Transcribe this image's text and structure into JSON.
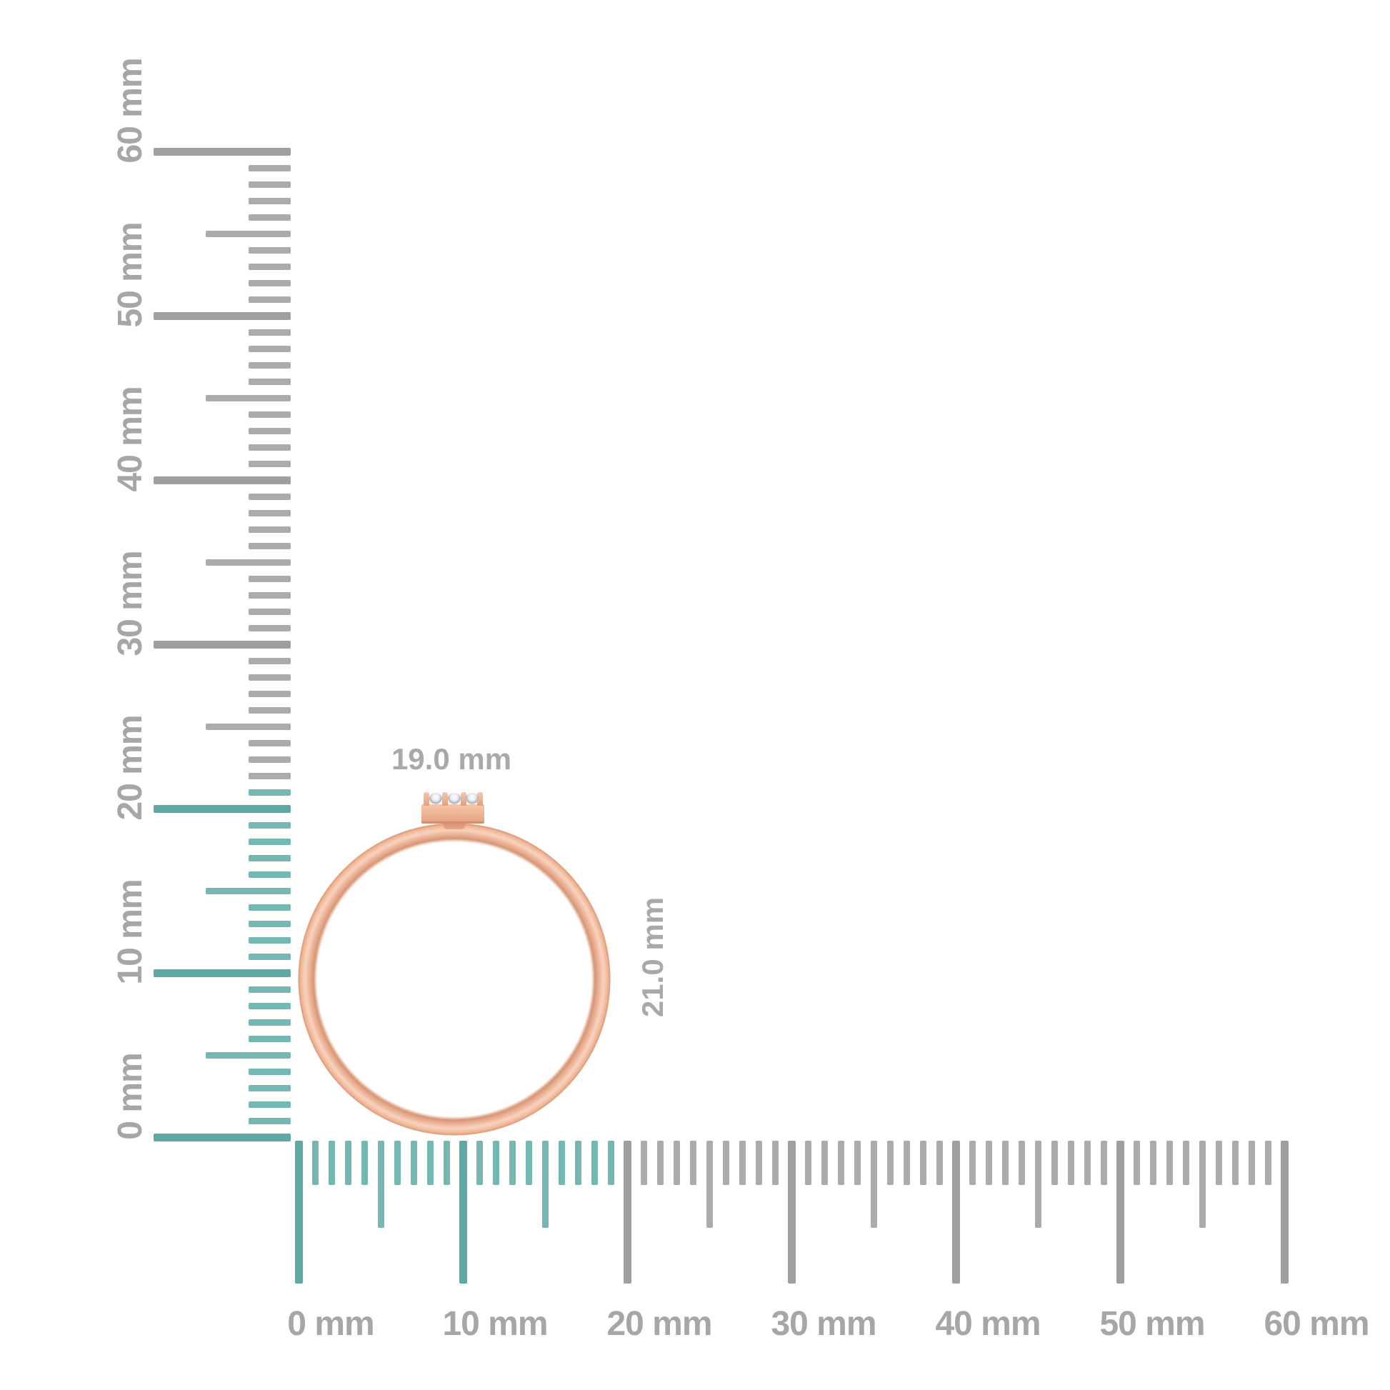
{
  "figure": {
    "object": "rose-gold ring with three-stone bar setting, shown against mm rulers",
    "width_label": "19.0 mm",
    "height_label": "21.0 mm",
    "stone_count": 3
  },
  "horizontal_ruler": {
    "unit": "mm",
    "min_mm": 0,
    "max_mm": 60,
    "minor_step_mm": 1,
    "medium_step_mm": 5,
    "major_step_mm": 10,
    "highlight_max_mm": 19,
    "labels": [
      "0 mm",
      "10 mm",
      "20 mm",
      "30 mm",
      "40 mm",
      "50 mm",
      "60 mm"
    ]
  },
  "vertical_ruler": {
    "unit": "mm",
    "min_mm": 0,
    "max_mm": 60,
    "minor_step_mm": 1,
    "medium_step_mm": 5,
    "major_step_mm": 10,
    "highlight_max_mm": 21,
    "labels": [
      "0 mm",
      "10 mm",
      "20 mm",
      "30 mm",
      "40 mm",
      "50 mm",
      "60 mm"
    ]
  },
  "colors": {
    "background": "#ffffff",
    "tick_teal": "#74b7b3",
    "tick_teal_major": "#5fa9a5",
    "tick_gray": "#ababab",
    "tick_gray_major": "#9f9f9f",
    "ruler_label": "#a6a6a6",
    "dimension_label": "#a9a9a9",
    "gold_light": "#f8d3c0",
    "gold_mid": "#f0b795",
    "gold_dark": "#d89674",
    "gold_edge": "#dd9a7b",
    "stone_white": "#f7f8fa",
    "stone_shadow": "#aab0ba"
  }
}
